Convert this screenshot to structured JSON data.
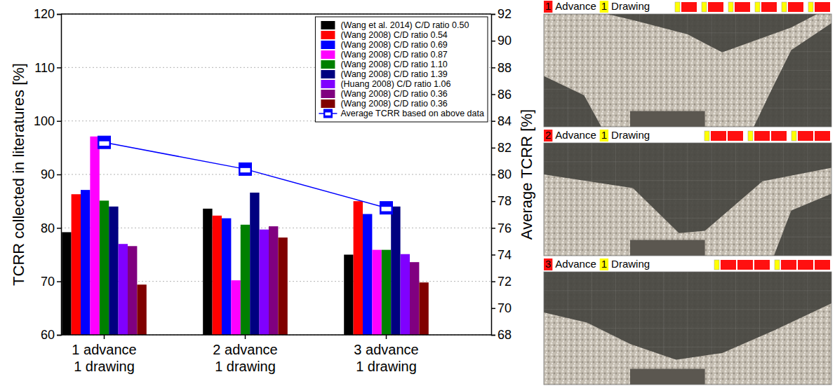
{
  "chart_data": {
    "type": "bar",
    "categories": [
      "1 advance 1 drawing",
      "2 advance 1 drawing",
      "3 advance 1 drawing"
    ],
    "y_label": "TCRR collected in literatures [%]",
    "y2_label": "Average TCRR [%]",
    "ylim": [
      60,
      120
    ],
    "yticks": [
      60,
      70,
      80,
      90,
      100,
      110,
      120
    ],
    "y2lim": [
      68,
      92
    ],
    "y2ticks": [
      68,
      70,
      72,
      74,
      76,
      78,
      80,
      82,
      84,
      86,
      88,
      90,
      92
    ],
    "grid": true,
    "legend": "upper right",
    "series": [
      {
        "name": "(Wang et al. 2014) C/D ratio 0.50",
        "color": "#000000",
        "values": [
          79.2,
          83.6,
          75.0
        ]
      },
      {
        "name": "(Wang 2008) C/D ratio 0.54",
        "color": "#ff0000",
        "values": [
          86.3,
          82.3,
          85.0
        ]
      },
      {
        "name": "(Wang 2008) C/D ratio 0.69",
        "color": "#0000ff",
        "values": [
          87.1,
          81.8,
          82.6
        ]
      },
      {
        "name": "(Wang 2008) C/D ratio 0.87",
        "color": "#ff00ff",
        "values": [
          97.1,
          70.2,
          75.9
        ]
      },
      {
        "name": "(Wang 2008) C/D ratio 1.10",
        "color": "#008000",
        "values": [
          85.1,
          80.6,
          75.9
        ]
      },
      {
        "name": "(Wang 2008) C/D ratio 1.39",
        "color": "#000080",
        "values": [
          84.0,
          86.6,
          84.0
        ]
      },
      {
        "name": "(Huang 2008) C/D ratio 1.06",
        "color": "#8000ff",
        "values": [
          77.0,
          79.7,
          75.1
        ]
      },
      {
        "name": "(Wang 2008) C/D ratio 0.36",
        "color": "#800080",
        "values": [
          76.6,
          80.3,
          73.6
        ]
      },
      {
        "name": "(Wang 2008) C/D ratio 0.36",
        "color": "#800000",
        "values": [
          69.4,
          78.2,
          69.8
        ]
      },
      {
        "name": "Average TCRR based on above data",
        "type": "line",
        "color": "#0000ff",
        "marker": "square",
        "axis": "y2",
        "values": [
          82.4,
          80.4,
          77.5
        ]
      }
    ]
  },
  "panels": [
    {
      "advance": 1,
      "advance_text": "Advance",
      "drawing": 1,
      "drawing_text": "Drawing"
    },
    {
      "advance": 2,
      "advance_text": "Advance",
      "drawing": 1,
      "drawing_text": "Drawing"
    },
    {
      "advance": 3,
      "advance_text": "Advance",
      "drawing": 1,
      "drawing_text": "Drawing"
    }
  ]
}
